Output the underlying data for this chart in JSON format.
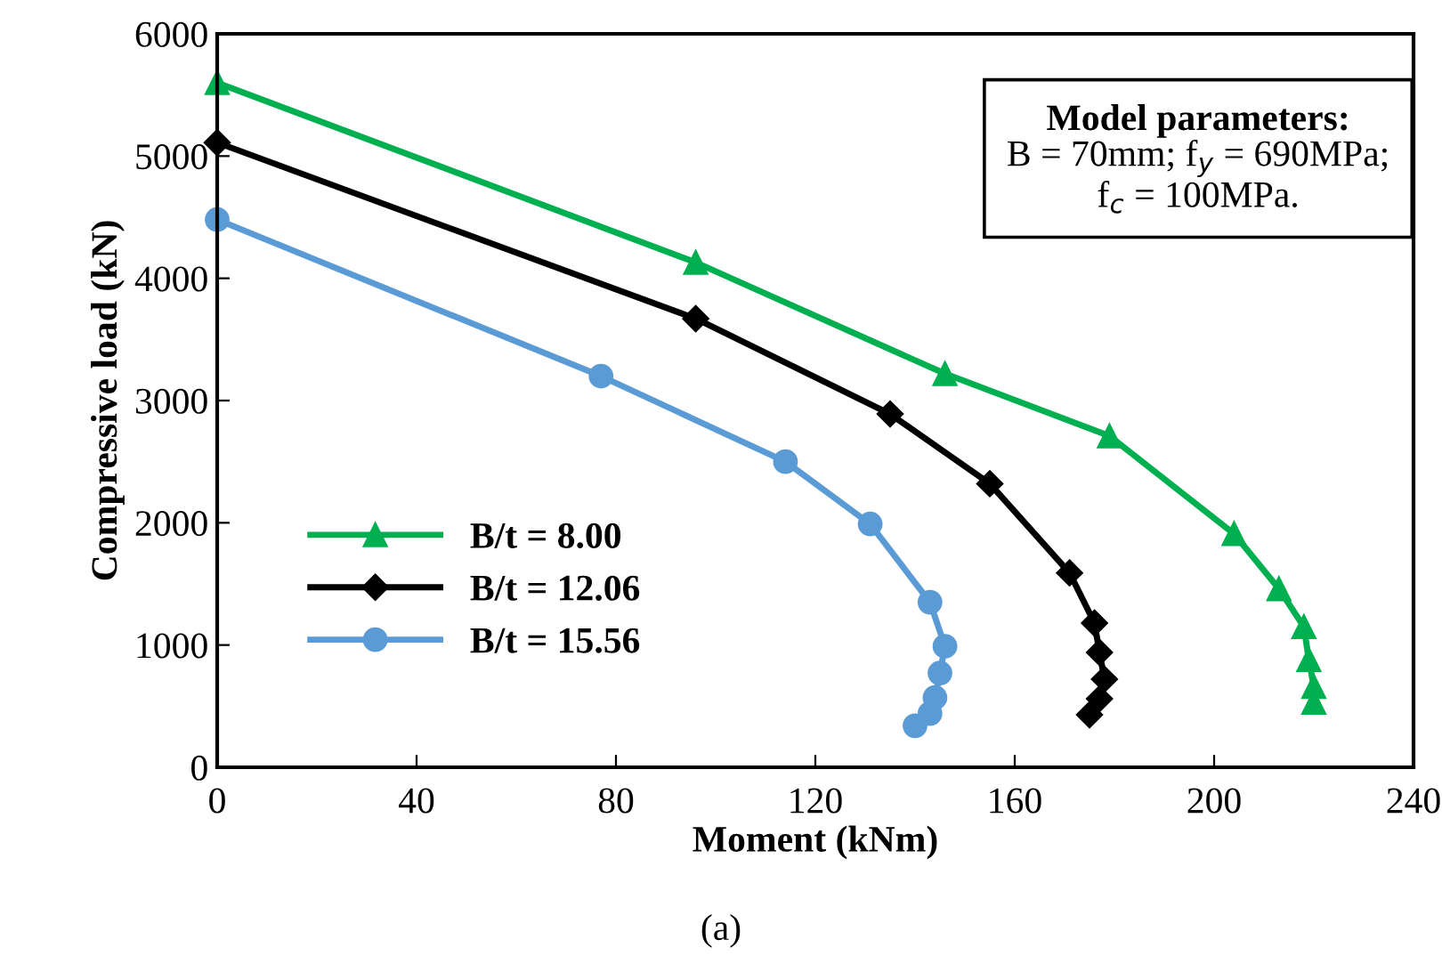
{
  "chart_data": {
    "type": "line",
    "xlabel": "Moment (kNm)",
    "ylabel": "Compressive load (kN)",
    "xlim": [
      0,
      240
    ],
    "xticks": [
      0,
      40,
      80,
      120,
      160,
      200,
      240
    ],
    "ylim": [
      0,
      6000
    ],
    "yticks": [
      0,
      1000,
      2000,
      3000,
      4000,
      5000,
      6000
    ],
    "grid": false,
    "legend": "bottom left",
    "line_style": "solid",
    "annotations": [
      "Model parameters:",
      "B = 70mm; f$_{y}$ = 690MPa;",
      "f$_{c}$ = 100MPa.",
      "(a)"
    ],
    "series": [
      {
        "name": "B/t = 8.00",
        "color": "#00b050",
        "marker": "triangle",
        "x": [
          0,
          96,
          146,
          179,
          204,
          213,
          218,
          219,
          220,
          220
        ],
        "values": [
          5600,
          4130,
          3220,
          2710,
          1910,
          1460,
          1150,
          880,
          660,
          530
        ]
      },
      {
        "name": "B/t = 12.06",
        "color": "#000000",
        "marker": "diamond",
        "x": [
          0,
          96,
          135,
          155,
          171,
          176,
          177,
          178,
          177,
          175
        ],
        "values": [
          5110,
          3670,
          2890,
          2320,
          1590,
          1180,
          940,
          720,
          560,
          430
        ]
      },
      {
        "name": "B/t = 15.56",
        "color": "#5b9bd5",
        "marker": "circle",
        "x": [
          0,
          77,
          114,
          131,
          143,
          146,
          145,
          144,
          143,
          140
        ],
        "values": [
          4480,
          3200,
          2500,
          1990,
          1350,
          990,
          770,
          570,
          440,
          340
        ]
      }
    ]
  }
}
